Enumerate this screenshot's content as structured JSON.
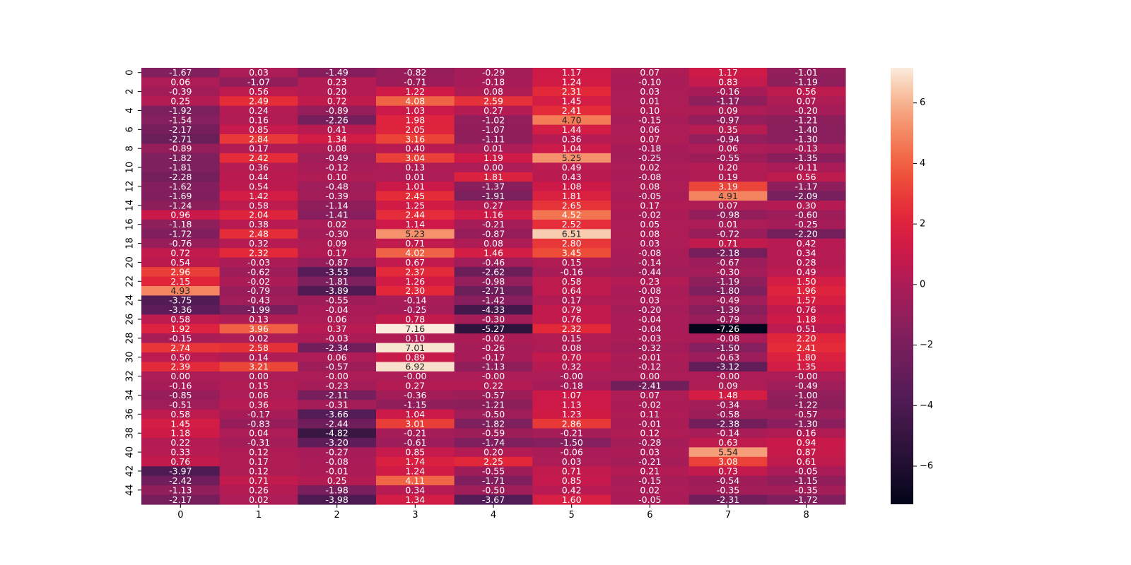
{
  "chart_data": {
    "type": "heatmap",
    "title": "",
    "xlabel": "",
    "ylabel": "",
    "x_categories": [
      "0",
      "1",
      "2",
      "3",
      "4",
      "5",
      "6",
      "7",
      "8"
    ],
    "y_categories": [
      "0",
      "1",
      "2",
      "3",
      "4",
      "5",
      "6",
      "7",
      "8",
      "9",
      "10",
      "11",
      "12",
      "13",
      "14",
      "15",
      "16",
      "17",
      "18",
      "19",
      "20",
      "21",
      "22",
      "23",
      "24",
      "25",
      "26",
      "27",
      "28",
      "29",
      "30",
      "31",
      "32",
      "33",
      "34",
      "35",
      "36",
      "37",
      "38",
      "39",
      "40",
      "41",
      "42",
      "43",
      "44",
      "45"
    ],
    "x_tick_labels": [
      "0",
      "1",
      "2",
      "3",
      "4",
      "5",
      "6",
      "7",
      "8"
    ],
    "y_tick_labels": [
      "0",
      "2",
      "4",
      "6",
      "8",
      "10",
      "12",
      "14",
      "16",
      "18",
      "20",
      "22",
      "24",
      "26",
      "28",
      "30",
      "32",
      "34",
      "36",
      "38",
      "40",
      "42",
      "44"
    ],
    "vmin": -7.26,
    "vmax": 7.16,
    "colorbar_ticks": [
      "6",
      "4",
      "2",
      "0",
      "−2",
      "−4",
      "−6"
    ],
    "colorbar_tick_values": [
      6,
      4,
      2,
      0,
      -2,
      -4,
      -6
    ],
    "colormap": "rocket",
    "values": [
      [
        "-1.67",
        "0.03",
        "-1.49",
        "-0.82",
        "-0.29",
        "1.17",
        "0.07",
        "1.17",
        "-1.01"
      ],
      [
        "0.06",
        "-1.07",
        "0.23",
        "-0.71",
        "-0.18",
        "1.24",
        "-0.10",
        "0.83",
        "-1.19"
      ],
      [
        "-0.39",
        "0.56",
        "0.20",
        "1.22",
        "0.08",
        "2.31",
        "0.03",
        "-0.16",
        "0.56"
      ],
      [
        "0.25",
        "2.49",
        "0.72",
        "4.08",
        "2.59",
        "1.45",
        "0.01",
        "-1.17",
        "0.07"
      ],
      [
        "-1.92",
        "0.24",
        "-0.89",
        "1.03",
        "0.27",
        "2.41",
        "0.10",
        "0.09",
        "-0.20"
      ],
      [
        "-1.54",
        "0.16",
        "-2.26",
        "1.98",
        "-1.02",
        "4.70",
        "-0.15",
        "-0.97",
        "-1.21"
      ],
      [
        "-2.17",
        "0.85",
        "0.41",
        "2.05",
        "-1.07",
        "1.44",
        "0.06",
        "0.35",
        "-1.40"
      ],
      [
        "-2.71",
        "2.84",
        "1.34",
        "3.16",
        "-1.11",
        "0.36",
        "0.07",
        "-0.94",
        "-1.30"
      ],
      [
        "-0.89",
        "0.17",
        "0.08",
        "0.40",
        "0.01",
        "1.04",
        "-0.18",
        "0.06",
        "-0.13"
      ],
      [
        "-1.82",
        "2.42",
        "-0.49",
        "3.04",
        "1.19",
        "5.25",
        "-0.25",
        "-0.55",
        "-1.35"
      ],
      [
        "-1.81",
        "0.36",
        "-0.12",
        "0.13",
        "0.00",
        "0.49",
        "0.02",
        "0.20",
        "-0.11"
      ],
      [
        "-2.28",
        "0.44",
        "0.10",
        "0.01",
        "1.81",
        "0.43",
        "-0.08",
        "0.19",
        "0.56"
      ],
      [
        "-1.62",
        "0.54",
        "-0.48",
        "1.01",
        "-1.37",
        "1.08",
        "0.08",
        "3.19",
        "-1.17"
      ],
      [
        "-1.69",
        "1.42",
        "-0.39",
        "2.45",
        "-1.91",
        "1.81",
        "-0.05",
        "4.91",
        "-2.09"
      ],
      [
        "-1.24",
        "0.58",
        "-1.14",
        "1.25",
        "0.27",
        "2.65",
        "0.17",
        "0.07",
        "0.30"
      ],
      [
        "0.96",
        "2.04",
        "-1.41",
        "2.44",
        "1.16",
        "4.52",
        "-0.02",
        "-0.98",
        "-0.60"
      ],
      [
        "-1.18",
        "0.38",
        "0.02",
        "1.14",
        "-0.21",
        "2.52",
        "0.05",
        "0.01",
        "-0.25"
      ],
      [
        "-1.72",
        "2.48",
        "-0.30",
        "5.23",
        "-0.87",
        "6.51",
        "0.08",
        "-0.72",
        "-2.20"
      ],
      [
        "-0.76",
        "0.32",
        "0.09",
        "0.71",
        "0.08",
        "2.80",
        "0.03",
        "0.71",
        "0.42"
      ],
      [
        "0.72",
        "2.32",
        "0.17",
        "4.02",
        "1.46",
        "3.45",
        "-0.08",
        "-2.18",
        "0.34"
      ],
      [
        "0.54",
        "-0.03",
        "-0.87",
        "0.67",
        "-0.46",
        "0.15",
        "-0.14",
        "-0.67",
        "0.28"
      ],
      [
        "2.96",
        "-0.62",
        "-3.53",
        "2.37",
        "-2.62",
        "-0.16",
        "-0.44",
        "-0.30",
        "0.49"
      ],
      [
        "2.15",
        "-0.02",
        "-1.81",
        "1.26",
        "-0.98",
        "0.58",
        "0.23",
        "-1.19",
        "1.50"
      ],
      [
        "4.93",
        "-0.79",
        "-3.89",
        "2.30",
        "-2.71",
        "0.64",
        "-0.08",
        "-1.80",
        "1.96"
      ],
      [
        "-3.75",
        "-0.43",
        "-0.55",
        "-0.14",
        "-1.42",
        "0.17",
        "0.03",
        "-0.49",
        "1.57"
      ],
      [
        "-3.36",
        "-1.99",
        "-0.04",
        "-0.25",
        "-4.33",
        "0.79",
        "-0.20",
        "-1.39",
        "0.76"
      ],
      [
        "0.58",
        "0.13",
        "0.06",
        "0.78",
        "-0.30",
        "0.76",
        "-0.04",
        "-0.79",
        "1.18"
      ],
      [
        "1.92",
        "3.96",
        "0.37",
        "7.16",
        "-5.27",
        "2.32",
        "-0.04",
        "-7.26",
        "0.51"
      ],
      [
        "-0.15",
        "0.02",
        "-0.03",
        "0.10",
        "-0.02",
        "0.15",
        "-0.03",
        "-0.08",
        "2.20"
      ],
      [
        "2.74",
        "2.58",
        "-2.34",
        "7.01",
        "-0.26",
        "0.08",
        "-0.32",
        "-1.50",
        "2.41"
      ],
      [
        "0.50",
        "0.14",
        "0.06",
        "0.89",
        "-0.17",
        "0.70",
        "-0.01",
        "-0.63",
        "1.80"
      ],
      [
        "2.39",
        "3.21",
        "-0.57",
        "6.92",
        "-1.13",
        "0.32",
        "-0.12",
        "-3.12",
        "1.35"
      ],
      [
        "0.00",
        "0.00",
        "-0.00",
        "-0.00",
        "-0.00",
        "-0.00",
        "0.00",
        "-0.00",
        "-0.00"
      ],
      [
        "-0.16",
        "0.15",
        "-0.23",
        "0.27",
        "0.22",
        "-0.18",
        "-2.41",
        "0.09",
        "-0.49"
      ],
      [
        "-0.85",
        "0.06",
        "-2.11",
        "-0.36",
        "-0.57",
        "1.07",
        "0.07",
        "1.48",
        "-1.00"
      ],
      [
        "-0.51",
        "0.36",
        "-0.31",
        "-1.15",
        "-1.21",
        "1.13",
        "-0.02",
        "-0.34",
        "-1.22"
      ],
      [
        "0.58",
        "-0.17",
        "-3.66",
        "1.04",
        "-0.50",
        "1.23",
        "0.11",
        "-0.58",
        "-0.57"
      ],
      [
        "1.45",
        "-0.83",
        "-2.44",
        "3.01",
        "-1.82",
        "2.86",
        "-0.01",
        "-2.38",
        "-1.30"
      ],
      [
        "1.18",
        "0.04",
        "-4.82",
        "-0.21",
        "-0.59",
        "-0.21",
        "0.12",
        "-0.14",
        "0.16"
      ],
      [
        "0.22",
        "-0.31",
        "-3.20",
        "-0.61",
        "-1.74",
        "-1.50",
        "-0.28",
        "0.63",
        "0.94"
      ],
      [
        "0.33",
        "0.12",
        "-0.27",
        "0.85",
        "0.20",
        "-0.06",
        "0.03",
        "5.54",
        "0.87"
      ],
      [
        "0.76",
        "0.17",
        "-0.08",
        "1.74",
        "2.25",
        "0.03",
        "-0.21",
        "3.08",
        "0.61"
      ],
      [
        "-3.97",
        "0.12",
        "-0.01",
        "1.24",
        "-0.55",
        "0.71",
        "0.21",
        "0.73",
        "-0.05"
      ],
      [
        "-2.42",
        "0.71",
        "0.25",
        "4.11",
        "-1.71",
        "0.85",
        "-0.15",
        "-0.54",
        "-1.15"
      ],
      [
        "-1.13",
        "0.26",
        "-1.98",
        "0.34",
        "-0.50",
        "0.42",
        "0.02",
        "-0.35",
        "-0.35"
      ],
      [
        "-2.17",
        "0.02",
        "-3.98",
        "1.34",
        "-3.67",
        "1.60",
        "-0.05",
        "-2.31",
        "-1.72"
      ]
    ]
  }
}
